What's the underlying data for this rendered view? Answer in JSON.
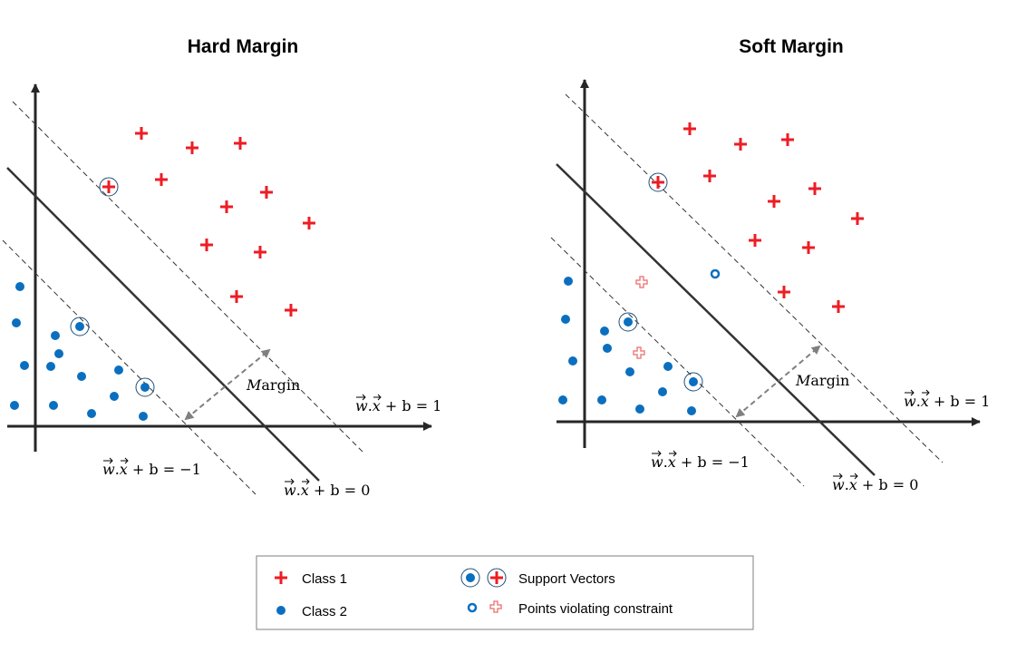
{
  "colors": {
    "class1": "#ee1c24",
    "class1_light": "#f08080",
    "class2": "#0b6fbf",
    "axis": "#262626",
    "margin_arrow": "#808080"
  },
  "panels": [
    {
      "title": "Hard Margin",
      "margin_label_m": "M",
      "margin_label_rest": "argin",
      "equations": {
        "pos": {
          "lhs": "w",
          "dot": ".",
          "x": "x",
          "rest": " + b = 1"
        },
        "neg": {
          "lhs": "w",
          "dot": ".",
          "x": "x",
          "rest": " + b = −1"
        },
        "zero": {
          "lhs": "w",
          "dot": ".",
          "x": "x",
          "rest": " + b = 0"
        }
      }
    },
    {
      "title": "Soft Margin",
      "margin_label_m": "M",
      "margin_label_rest": "argin",
      "equations": {
        "pos": {
          "lhs": "w",
          "dot": ".",
          "x": "x",
          "rest": " + b = 1"
        },
        "neg": {
          "lhs": "w",
          "dot": ".",
          "x": "x",
          "rest": " + b = −1"
        },
        "zero": {
          "lhs": "w",
          "dot": ".",
          "x": "x",
          "rest": " + b = 0"
        }
      }
    }
  ],
  "legend": {
    "class1": "Class 1",
    "class2": "Class 2",
    "support_vectors": "Support Vectors",
    "violating": "Points violating constraint"
  }
}
